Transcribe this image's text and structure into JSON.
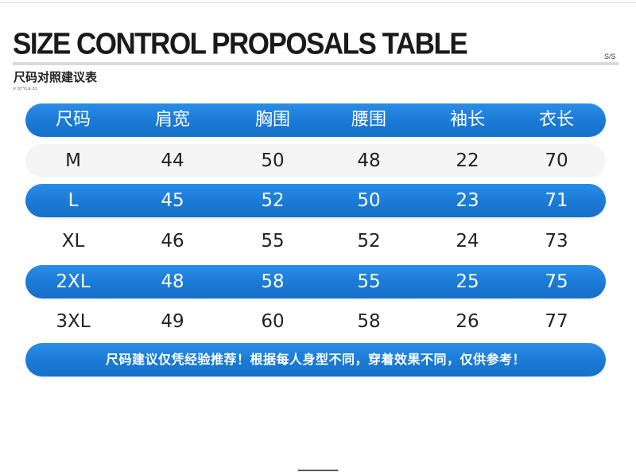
{
  "title": "SIZE CONTROL PROPOSALS TABLE",
  "season": "S/S",
  "subtitle": "尺码对照建议表",
  "style_code": "# STYLE 01",
  "table": {
    "headers": [
      "尺码",
      "肩宽",
      "胸围",
      "腰围",
      "袖长",
      "衣长"
    ],
    "rows": [
      [
        "M",
        "44",
        "50",
        "48",
        "22",
        "70"
      ],
      [
        "L",
        "45",
        "52",
        "50",
        "23",
        "71"
      ],
      [
        "XL",
        "46",
        "55",
        "52",
        "24",
        "73"
      ],
      [
        "2XL",
        "48",
        "58",
        "55",
        "25",
        "75"
      ],
      [
        "3XL",
        "49",
        "60",
        "58",
        "26",
        "77"
      ]
    ]
  },
  "note": "尺码建议仅凭经验推荐！根据每人身型不同，穿着效果不同，仅供参考！",
  "colors": {
    "accent": "#1a7ad6",
    "stripe": "#f4f4f4",
    "text": "#222222"
  }
}
